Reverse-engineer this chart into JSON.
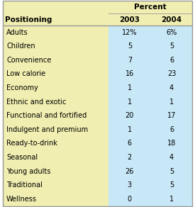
{
  "title_percent": "Percent",
  "col_positioning": "Positioning",
  "col_2003": "2003",
  "col_2004": "2004",
  "rows": [
    {
      "label": "Adults",
      "v2003": "12%",
      "v2004": "6%"
    },
    {
      "label": "Children",
      "v2003": "5",
      "v2004": "5"
    },
    {
      "label": "Convenience",
      "v2003": "7",
      "v2004": "6"
    },
    {
      "label": "Low calorie",
      "v2003": "16",
      "v2004": "23"
    },
    {
      "label": "Economy",
      "v2003": "1",
      "v2004": "4"
    },
    {
      "label": "Ethnic and exotic",
      "v2003": "1",
      "v2004": "1"
    },
    {
      "label": "Functional and fortified",
      "v2003": "20",
      "v2004": "17"
    },
    {
      "label": "Indulgent and premium",
      "v2003": "1",
      "v2004": "6"
    },
    {
      "label": "Ready-to-drink",
      "v2003": "6",
      "v2004": "18"
    },
    {
      "label": "Seasonal",
      "v2003": "2",
      "v2004": "4"
    },
    {
      "label": "Young adults",
      "v2003": "26",
      "v2004": "5"
    },
    {
      "label": "Traditional",
      "v2003": "3",
      "v2004": "5"
    },
    {
      "label": "Wellness",
      "v2003": "0",
      "v2004": "1"
    }
  ],
  "bg_yellow": "#f0eeb0",
  "bg_blue": "#c8e8f8",
  "border_color": "#999999",
  "figsize": [
    2.75,
    2.92
  ],
  "dpi": 100,
  "font_family": "DejaVu Sans",
  "header_fontsize": 7.5,
  "data_fontsize": 7.0,
  "col_split": 0.555,
  "col2_split": 0.775
}
